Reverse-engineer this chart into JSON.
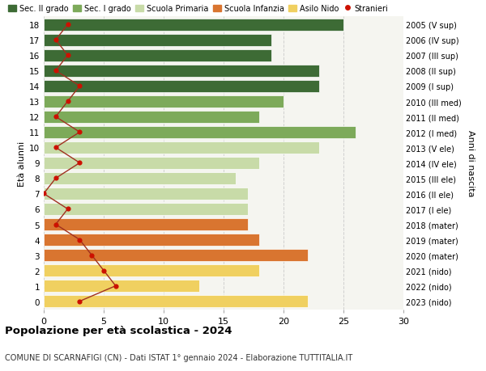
{
  "ages": [
    18,
    17,
    16,
    15,
    14,
    13,
    12,
    11,
    10,
    9,
    8,
    7,
    6,
    5,
    4,
    3,
    2,
    1,
    0
  ],
  "right_labels": [
    "2005 (V sup)",
    "2006 (IV sup)",
    "2007 (III sup)",
    "2008 (II sup)",
    "2009 (I sup)",
    "2010 (III med)",
    "2011 (II med)",
    "2012 (I med)",
    "2013 (V ele)",
    "2014 (IV ele)",
    "2015 (III ele)",
    "2016 (II ele)",
    "2017 (I ele)",
    "2018 (mater)",
    "2019 (mater)",
    "2020 (mater)",
    "2021 (nido)",
    "2022 (nido)",
    "2023 (nido)"
  ],
  "bar_values": [
    25,
    19,
    19,
    23,
    23,
    20,
    18,
    26,
    23,
    18,
    16,
    17,
    17,
    17,
    18,
    22,
    18,
    13,
    22
  ],
  "bar_colors": [
    "#3d6b35",
    "#3d6b35",
    "#3d6b35",
    "#3d6b35",
    "#3d6b35",
    "#7daa5a",
    "#7daa5a",
    "#7daa5a",
    "#c8dba8",
    "#c8dba8",
    "#c8dba8",
    "#c8dba8",
    "#c8dba8",
    "#d97530",
    "#d97530",
    "#d97530",
    "#f0d060",
    "#f0d060",
    "#f0d060"
  ],
  "stranieri_values": [
    2,
    1,
    2,
    1,
    3,
    2,
    1,
    3,
    1,
    3,
    1,
    0,
    2,
    1,
    3,
    4,
    5,
    6,
    3
  ],
  "title_bold": "Popolazione per età scolastica - 2024",
  "subtitle": "COMUNE DI SCARNAFIGI (CN) - Dati ISTAT 1° gennaio 2024 - Elaborazione TUTTITALIA.IT",
  "ylabel_left": "Età alunni",
  "ylabel_right": "Anni di nascita",
  "xlim": [
    0,
    30
  ],
  "xticks": [
    0,
    5,
    10,
    15,
    20,
    25,
    30
  ],
  "legend_items": [
    {
      "label": "Sec. II grado",
      "color": "#3d6b35",
      "type": "patch"
    },
    {
      "label": "Sec. I grado",
      "color": "#7daa5a",
      "type": "patch"
    },
    {
      "label": "Scuola Primaria",
      "color": "#c8dba8",
      "type": "patch"
    },
    {
      "label": "Scuola Infanzia",
      "color": "#d97530",
      "type": "patch"
    },
    {
      "label": "Asilo Nido",
      "color": "#f0d060",
      "type": "patch"
    },
    {
      "label": "Stranieri",
      "color": "#cc1100",
      "type": "dot"
    }
  ],
  "bar_height": 0.8,
  "bg_color": "#ffffff",
  "plot_bg_color": "#f5f5f0",
  "grid_color": "#d0d0d0",
  "stranieri_dot_color": "#cc1100",
  "stranieri_line_color": "#a03020"
}
